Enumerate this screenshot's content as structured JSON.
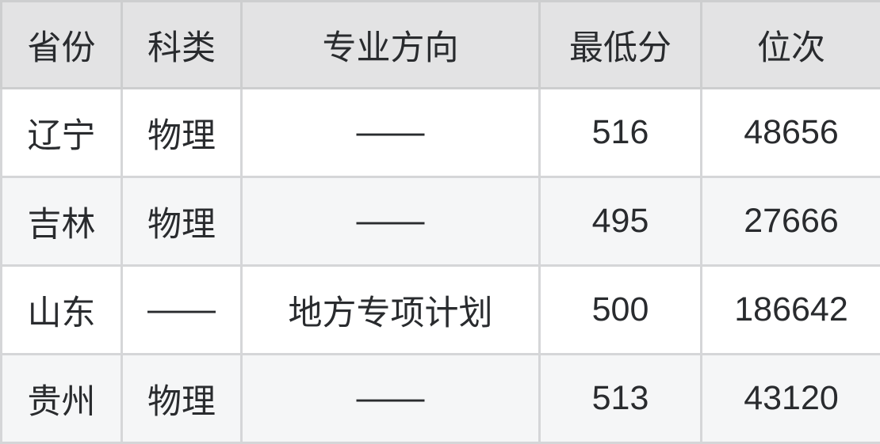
{
  "chart_data": {
    "type": "table",
    "title": "",
    "columns": [
      "省份",
      "科类",
      "专业方向",
      "最低分",
      "位次"
    ],
    "rows": [
      [
        "辽宁",
        "物理",
        "——",
        "516",
        "48656"
      ],
      [
        "吉林",
        "物理",
        "——",
        "495",
        "27666"
      ],
      [
        "山东",
        "——",
        "地方专项计划",
        "500",
        "186642"
      ],
      [
        "贵州",
        "物理",
        "——",
        "513",
        "43120"
      ]
    ]
  },
  "colors": {
    "header_bg": "#e3e3e4",
    "row_odd_bg": "#ffffff",
    "row_even_bg": "#f5f6f7",
    "grid_line": "#d5d6d8",
    "outer_border": "#c8c9cb",
    "text": "#292b2e"
  }
}
